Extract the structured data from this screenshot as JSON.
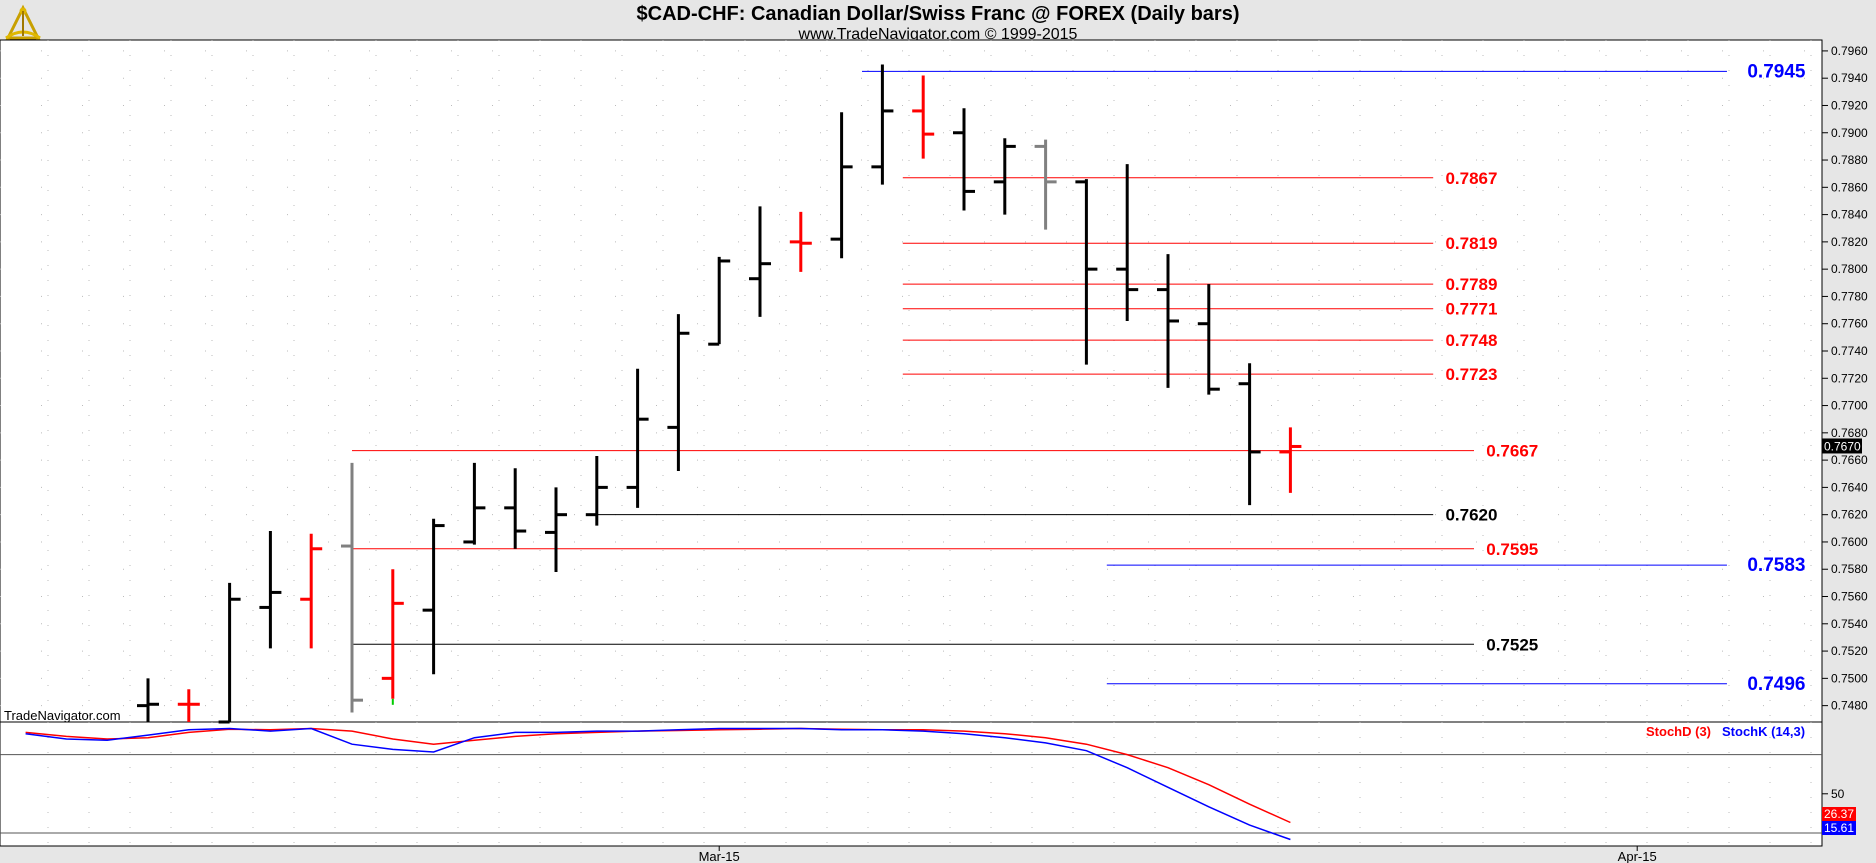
{
  "header": {
    "title": "$CAD-CHF:  Canadian Dollar/Swiss Franc @ FOREX  (Daily bars)",
    "subtitle": "www.TradeNavigator.com © 1999-2015",
    "watermark": "TradeNavigator.com",
    "logo_icon": "sextant-icon"
  },
  "chart_data": [
    {
      "type": "ohlc",
      "ylim": [
        0.7468,
        0.7968
      ],
      "y_ticks": [
        "0.7960",
        "0.7940",
        "0.7920",
        "0.7900",
        "0.7880",
        "0.7860",
        "0.7840",
        "0.7820",
        "0.7800",
        "0.7780",
        "0.7760",
        "0.7740",
        "0.7720",
        "0.7700",
        "0.7680",
        "0.7660",
        "0.7640",
        "0.7620",
        "0.7600",
        "0.7580",
        "0.7560",
        "0.7540",
        "0.7520",
        "0.7500",
        "0.7480"
      ],
      "x_labels": [
        {
          "label": "Mar-15",
          "index": 14
        },
        {
          "label": "Apr-15",
          "index": 36.5
        }
      ],
      "last_price": "0.7670",
      "colors": {
        "up": "#000000",
        "down": "#ff0000",
        "neutral": "#808080",
        "red_level": "#ff0000",
        "blue_level": "#0000ff",
        "black_level": "#000000"
      },
      "bars": [
        {
          "o": 0.748,
          "h": 0.75,
          "l": 0.7468,
          "c": 0.7481,
          "color": "black"
        },
        {
          "o": 0.7481,
          "h": 0.7492,
          "l": 0.7468,
          "c": 0.7481,
          "color": "red"
        },
        {
          "o": 0.7468,
          "h": 0.757,
          "l": 0.7468,
          "c": 0.7558,
          "color": "black"
        },
        {
          "o": 0.7552,
          "h": 0.7608,
          "l": 0.7522,
          "c": 0.7563,
          "color": "black"
        },
        {
          "o": 0.7558,
          "h": 0.7606,
          "l": 0.7522,
          "c": 0.7595,
          "color": "red"
        },
        {
          "o": 0.7597,
          "h": 0.7658,
          "l": 0.7475,
          "c": 0.7484,
          "color": "gray"
        },
        {
          "o": 0.75,
          "h": 0.758,
          "l": 0.7485,
          "c": 0.7555,
          "color": "red"
        },
        {
          "o": 0.755,
          "h": 0.7617,
          "l": 0.7503,
          "c": 0.7612,
          "color": "black"
        },
        {
          "o": 0.76,
          "h": 0.7658,
          "l": 0.7598,
          "c": 0.7625,
          "color": "black"
        },
        {
          "o": 0.7625,
          "h": 0.7654,
          "l": 0.7595,
          "c": 0.7608,
          "color": "black"
        },
        {
          "o": 0.7607,
          "h": 0.764,
          "l": 0.7578,
          "c": 0.762,
          "color": "black"
        },
        {
          "o": 0.762,
          "h": 0.7663,
          "l": 0.7612,
          "c": 0.764,
          "color": "black"
        },
        {
          "o": 0.764,
          "h": 0.7727,
          "l": 0.7625,
          "c": 0.769,
          "color": "black"
        },
        {
          "o": 0.7684,
          "h": 0.7767,
          "l": 0.7652,
          "c": 0.7753,
          "color": "black"
        },
        {
          "o": 0.7745,
          "h": 0.7809,
          "l": 0.7745,
          "c": 0.7806,
          "color": "black"
        },
        {
          "o": 0.7793,
          "h": 0.7846,
          "l": 0.7765,
          "c": 0.7804,
          "color": "black"
        },
        {
          "o": 0.782,
          "h": 0.7842,
          "l": 0.7798,
          "c": 0.7819,
          "color": "red"
        },
        {
          "o": 0.7822,
          "h": 0.7915,
          "l": 0.7808,
          "c": 0.7875,
          "color": "black"
        },
        {
          "o": 0.7875,
          "h": 0.795,
          "l": 0.7862,
          "c": 0.7916,
          "color": "black"
        },
        {
          "o": 0.7916,
          "h": 0.7942,
          "l": 0.7881,
          "c": 0.7899,
          "color": "red"
        },
        {
          "o": 0.79,
          "h": 0.7918,
          "l": 0.7843,
          "c": 0.7857,
          "color": "black"
        },
        {
          "o": 0.7864,
          "h": 0.7896,
          "l": 0.784,
          "c": 0.789,
          "color": "black"
        },
        {
          "o": 0.789,
          "h": 0.7895,
          "l": 0.7829,
          "c": 0.7864,
          "color": "gray"
        },
        {
          "o": 0.7864,
          "h": 0.7866,
          "l": 0.773,
          "c": 0.78,
          "color": "black"
        },
        {
          "o": 0.78,
          "h": 0.7877,
          "l": 0.7762,
          "c": 0.7785,
          "color": "black"
        },
        {
          "o": 0.7785,
          "h": 0.7811,
          "l": 0.7713,
          "c": 0.7762,
          "color": "black"
        },
        {
          "o": 0.776,
          "h": 0.7789,
          "l": 0.7708,
          "c": 0.7712,
          "color": "black"
        },
        {
          "o": 0.7716,
          "h": 0.7731,
          "l": 0.7627,
          "c": 0.7666,
          "color": "black"
        },
        {
          "o": 0.7666,
          "h": 0.7684,
          "l": 0.7636,
          "c": 0.767,
          "color": "red"
        }
      ],
      "levels": [
        {
          "value": 0.7945,
          "label": "0.7945",
          "color": "blue",
          "from": 17.5,
          "to": 38.7,
          "label_at": 39.2,
          "label_size": "large"
        },
        {
          "value": 0.7867,
          "label": "0.7867",
          "color": "red",
          "from": 18.5,
          "to": 31.5,
          "label_at": 31.8,
          "label_size": "medium"
        },
        {
          "value": 0.7819,
          "label": "0.7819",
          "color": "red",
          "from": 18.5,
          "to": 31.5,
          "label_at": 31.8,
          "label_size": "medium"
        },
        {
          "value": 0.7789,
          "label": "0.7789",
          "color": "red",
          "from": 18.5,
          "to": 31.5,
          "label_at": 31.8,
          "label_size": "medium"
        },
        {
          "value": 0.7771,
          "label": "0.7771",
          "color": "red",
          "from": 18.5,
          "to": 31.5,
          "label_at": 31.8,
          "label_size": "medium"
        },
        {
          "value": 0.7748,
          "label": "0.7748",
          "color": "red",
          "from": 18.5,
          "to": 31.5,
          "label_at": 31.8,
          "label_size": "medium"
        },
        {
          "value": 0.7723,
          "label": "0.7723",
          "color": "red",
          "from": 18.5,
          "to": 31.5,
          "label_at": 31.8,
          "label_size": "medium"
        },
        {
          "value": 0.7667,
          "label": "0.7667",
          "color": "red",
          "from": 5.0,
          "to": 32.5,
          "label_at": 32.8,
          "label_size": "medium"
        },
        {
          "value": 0.762,
          "label": "0.7620",
          "color": "black",
          "from": 11.0,
          "to": 31.5,
          "label_at": 31.8,
          "label_size": "medium"
        },
        {
          "value": 0.7595,
          "label": "0.7595",
          "color": "red",
          "from": 5.0,
          "to": 32.5,
          "label_at": 32.8,
          "label_size": "medium"
        },
        {
          "value": 0.7583,
          "label": "0.7583",
          "color": "blue",
          "from": 23.5,
          "to": 38.7,
          "label_at": 39.2,
          "label_size": "large"
        },
        {
          "value": 0.7525,
          "label": "0.7525",
          "color": "black",
          "from": 5.0,
          "to": 32.5,
          "label_at": 32.8,
          "label_size": "medium"
        },
        {
          "value": 0.7496,
          "label": "0.7496",
          "color": "blue",
          "from": 23.5,
          "to": 38.7,
          "label_at": 39.2,
          "label_size": "large"
        }
      ]
    },
    {
      "type": "line",
      "legend": [
        {
          "name": "StochD (3)",
          "color": "#ff0000"
        },
        {
          "name": "StochK (14,3)",
          "color": "#0000ff"
        }
      ],
      "y_ticks": [
        "50"
      ],
      "ylim": [
        10,
        105
      ],
      "reference_lines": [
        80,
        20
      ],
      "last_values": [
        {
          "label": "26.37",
          "color": "#ff0000"
        },
        {
          "label": "15.61",
          "color": "#0000ff"
        }
      ],
      "series": [
        {
          "name": "StochD (3)",
          "color": "#ff0000",
          "points": [
            [
              -3,
              97
            ],
            [
              -2,
              94
            ],
            [
              -1,
              92
            ],
            [
              0,
              93
            ],
            [
              1,
              97
            ],
            [
              2,
              99.5
            ],
            [
              3,
              99
            ],
            [
              4,
              100
            ],
            [
              5,
              98
            ],
            [
              6,
              92
            ],
            [
              7,
              88
            ],
            [
              8,
              91
            ],
            [
              9,
              94
            ],
            [
              10,
              96
            ],
            [
              11,
              97
            ],
            [
              12,
              98
            ],
            [
              13,
              98.5
            ],
            [
              14,
              99
            ],
            [
              15,
              99.5
            ],
            [
              16,
              100
            ],
            [
              17,
              99.5
            ],
            [
              18,
              99
            ],
            [
              19,
              99
            ],
            [
              20,
              98
            ],
            [
              21,
              96
            ],
            [
              22,
              93
            ],
            [
              23,
              88
            ],
            [
              24,
              80
            ],
            [
              25,
              70
            ],
            [
              26,
              57
            ],
            [
              27,
              42
            ],
            [
              28,
              28
            ]
          ]
        },
        {
          "name": "StochK (14,3)",
          "color": "#0000ff",
          "points": [
            [
              -3,
              96
            ],
            [
              -2,
              92
            ],
            [
              -1,
              91
            ],
            [
              0,
              95
            ],
            [
              1,
              99
            ],
            [
              2,
              100
            ],
            [
              3,
              98
            ],
            [
              4,
              100
            ],
            [
              5,
              88
            ],
            [
              6,
              84
            ],
            [
              7,
              82
            ],
            [
              8,
              93
            ],
            [
              9,
              97
            ],
            [
              10,
              97
            ],
            [
              11,
              98
            ],
            [
              12,
              98
            ],
            [
              13,
              99
            ],
            [
              14,
              100
            ],
            [
              15,
              100
            ],
            [
              16,
              100
            ],
            [
              17,
              99
            ],
            [
              18,
              99
            ],
            [
              19,
              98
            ],
            [
              20,
              96
            ],
            [
              21,
              93
            ],
            [
              22,
              89
            ],
            [
              23,
              83
            ],
            [
              24,
              70
            ],
            [
              25,
              55
            ],
            [
              26,
              40
            ],
            [
              27,
              26
            ],
            [
              28,
              15
            ]
          ]
        }
      ]
    }
  ]
}
